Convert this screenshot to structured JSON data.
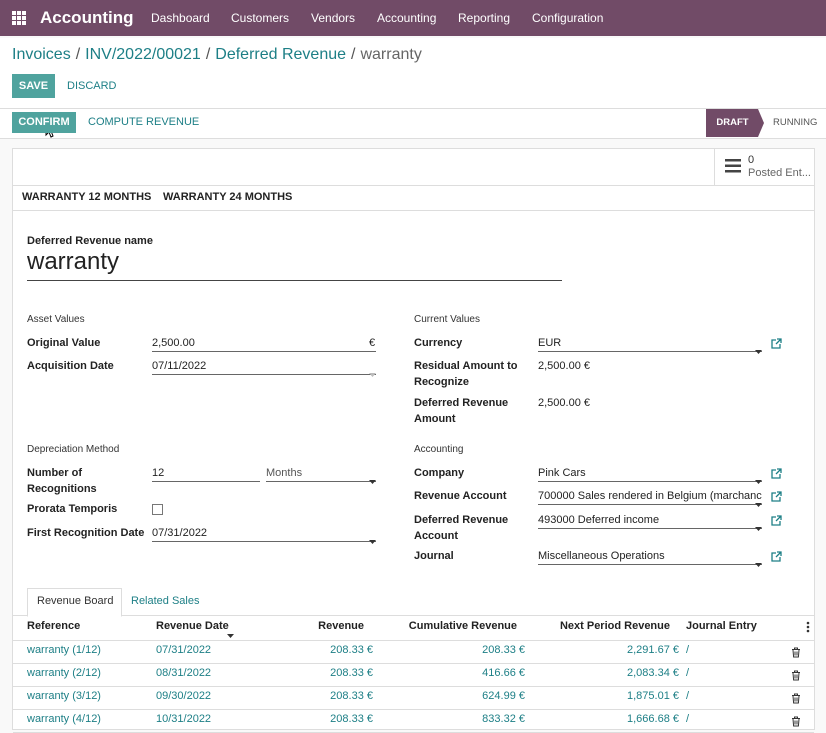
{
  "navbar": {
    "app": "Accounting",
    "menu": [
      "Dashboard",
      "Customers",
      "Vendors",
      "Accounting",
      "Reporting",
      "Configuration"
    ]
  },
  "breadcrumb": {
    "items": [
      "Invoices",
      "INV/2022/00021",
      "Deferred Revenue",
      "warranty"
    ],
    "separator": "/"
  },
  "buttons": {
    "save": "SAVE",
    "discard": "DISCARD",
    "confirm": "CONFIRM",
    "compute": "COMPUTE REVENUE"
  },
  "status": [
    "DRAFT",
    "RUNNING"
  ],
  "smart_button": {
    "count": "0",
    "label": "Posted Ent..."
  },
  "header_tabs": [
    "WARRANTY 12 MONTHS",
    "WARRANTY 24 MONTHS"
  ],
  "name_label": "Deferred Revenue name",
  "name": "warranty",
  "groups": [
    {
      "title": "Asset Values",
      "fields": [
        {
          "label": "Original Value",
          "value": "2,500.00",
          "suffix": "€"
        },
        {
          "label": "Acquisition Date",
          "value": "07/11/2022"
        }
      ]
    },
    {
      "title": "Current Values",
      "fields": [
        {
          "label": "Currency",
          "value": "EUR"
        },
        {
          "label": "Residual Amount to Recognize",
          "value": "2,500.00 €"
        },
        {
          "label": "Deferred Revenue Amount",
          "value": "2,500.00 €"
        }
      ]
    },
    {
      "title": "Depreciation Method",
      "fields": [
        {
          "label": "Number of Recognitions",
          "value": "12",
          "unit": "Months"
        },
        {
          "label": "Prorata Temporis"
        },
        {
          "label": "First Recognition Date",
          "value": "07/31/2022"
        }
      ]
    },
    {
      "title": "Accounting",
      "fields": [
        {
          "label": "Company",
          "value": "Pink Cars"
        },
        {
          "label": "Revenue Account",
          "value": "700000 Sales rendered in Belgium (marchanc"
        },
        {
          "label": "Deferred Revenue Account",
          "value": "493000 Deferred income"
        },
        {
          "label": "Journal",
          "value": "Miscellaneous Operations"
        }
      ]
    }
  ],
  "notebook_tabs": [
    "Revenue Board",
    "Related Sales"
  ],
  "table": {
    "columns": [
      "Reference",
      "Revenue Date",
      "Revenue",
      "Cumulative Revenue",
      "Next Period Revenue",
      "Journal Entry"
    ],
    "rows": [
      [
        "warranty (1/12)",
        "07/31/2022",
        "208.33 €",
        "208.33 €",
        "2,291.67 €",
        "/"
      ],
      [
        "warranty (2/12)",
        "08/31/2022",
        "208.33 €",
        "416.66 €",
        "2,083.34 €",
        "/"
      ],
      [
        "warranty (3/12)",
        "09/30/2022",
        "208.33 €",
        "624.99 €",
        "1,875.01 €",
        "/"
      ],
      [
        "warranty (4/12)",
        "10/31/2022",
        "208.33 €",
        "833.32 €",
        "1,666.68 €",
        "/"
      ]
    ]
  }
}
